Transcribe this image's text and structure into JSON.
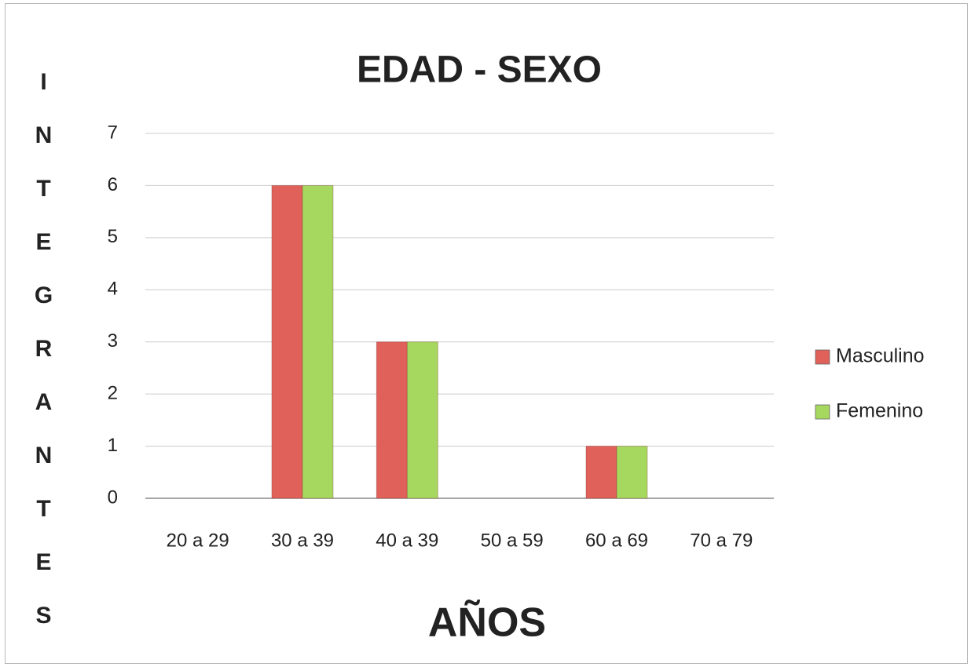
{
  "chart_data": {
    "type": "bar",
    "title": "EDAD - SEXO",
    "x_label": "AÑOS",
    "y_label": "INTEGRANTES",
    "categories": [
      "20 a 29",
      "30 a 39",
      "40 a 39",
      "50 a 59",
      "60 a 69",
      "70 a 79"
    ],
    "series": [
      {
        "name": "Masculino",
        "color": "#e0605a",
        "values": [
          0,
          6,
          3,
          0,
          1,
          0
        ]
      },
      {
        "name": "Femenino",
        "color": "#a6d75e",
        "values": [
          0,
          6,
          3,
          0,
          1,
          0
        ]
      }
    ],
    "ylim": [
      0,
      7
    ],
    "yticks": [
      0,
      1,
      2,
      3,
      4,
      5,
      6,
      7
    ],
    "grid": true,
    "legend": "right"
  }
}
